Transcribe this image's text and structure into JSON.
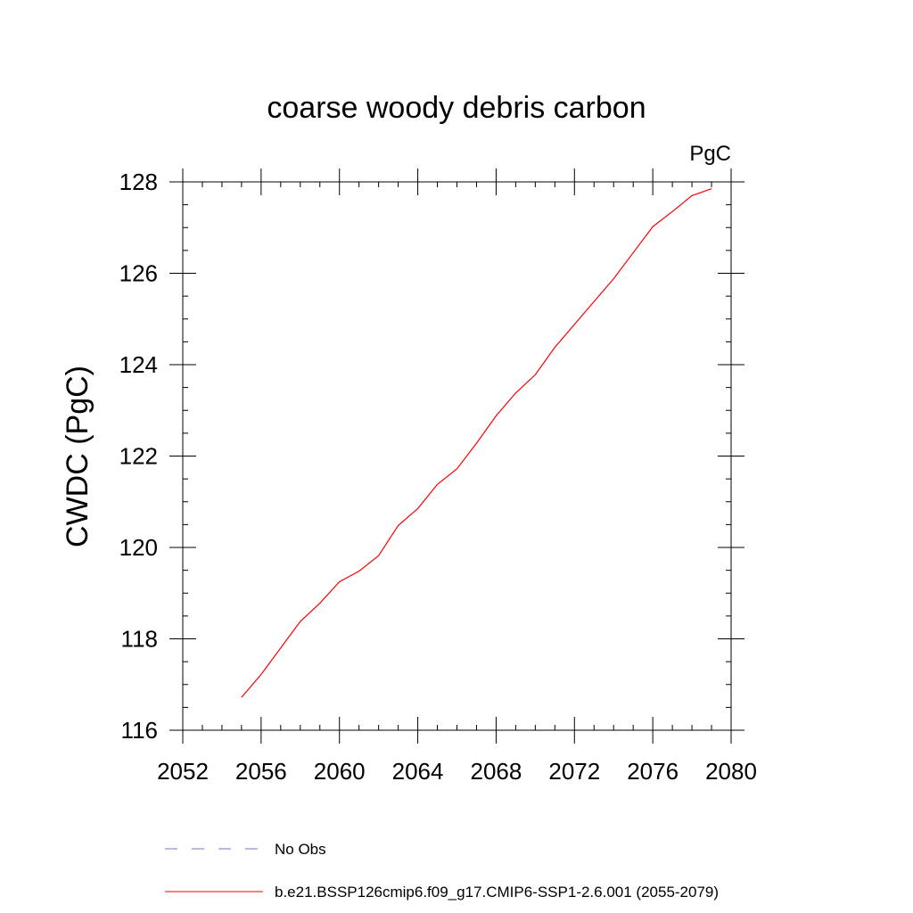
{
  "chart_data": {
    "type": "line",
    "title": "coarse woody debris carbon",
    "units": "PgC",
    "xlabel": "",
    "ylabel": "CWDC  (PgC)",
    "xlim": [
      2052,
      2080
    ],
    "ylim": [
      116,
      128
    ],
    "x_ticks": [
      2052,
      2056,
      2060,
      2064,
      2068,
      2072,
      2076,
      2080
    ],
    "y_ticks": [
      116,
      118,
      120,
      122,
      124,
      126,
      128
    ],
    "grid": false,
    "legend_position": "bottom",
    "series": [
      {
        "name": "No Obs",
        "color": "#7b6fbf",
        "dash": "dashed",
        "x": [],
        "y": []
      },
      {
        "name": "b.e21.BSSP126cmip6.f09_g17.CMIP6-SSP1-2.6.001 (2055-2079)",
        "color": "#ff0000",
        "dash": "solid",
        "x": [
          2055,
          2056,
          2057,
          2058,
          2059,
          2060,
          2061,
          2062,
          2063,
          2064,
          2065,
          2066,
          2067,
          2068,
          2069,
          2070,
          2071,
          2072,
          2073,
          2074,
          2075,
          2076,
          2077,
          2078,
          2079
        ],
        "y": [
          116.72,
          117.22,
          117.8,
          118.38,
          118.78,
          119.25,
          119.48,
          119.82,
          120.48,
          120.85,
          121.38,
          121.72,
          122.28,
          122.88,
          123.38,
          123.78,
          124.38,
          124.88,
          125.38,
          125.88,
          126.45,
          127.02,
          127.35,
          127.7,
          127.85
        ]
      }
    ]
  }
}
